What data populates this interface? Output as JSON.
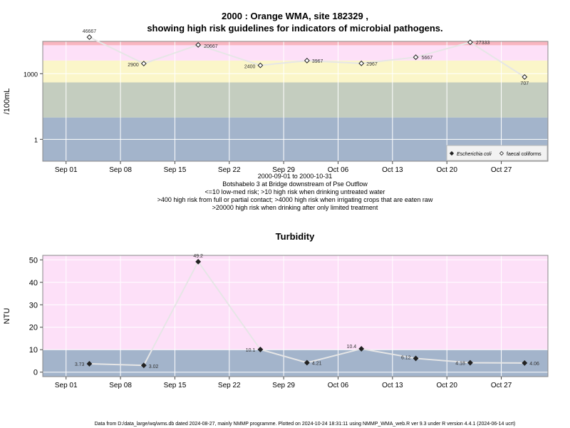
{
  "title_line1": "2000 : Orange WMA, site 182329 ,",
  "title_line2": "showing high risk guidelines for indicators of microbial pathogens.",
  "footer": "Data from D:/data_large/wq/wms.db dated 2024-08-27, mainly NMMP programme. Plotted on 2024-10-24 18:31:11 using NMMP_WMA_web.R ver 9.3 under R version 4.4.1 (2024-06-14 ucrt)",
  "colors": {
    "red_band": "#f9b5c0",
    "pink_band": "#fde0f8",
    "yellow_band": "#fbf6c9",
    "grey_band": "#c4cdbf",
    "blue_band": "#a3b4cb",
    "line": "#e6e6e6"
  },
  "chart_data": [
    {
      "type": "line",
      "ylabel": "/100mL",
      "y_scale": "log10",
      "ylim": [
        0.1,
        30000
      ],
      "y_ticks": [
        {
          "value": 1,
          "label": "1"
        },
        {
          "value": 1000,
          "label": "1000"
        }
      ],
      "x_ticks": [
        "Sep 01",
        "Sep 08",
        "Sep 15",
        "Sep 22",
        "Sep 29",
        "Oct 06",
        "Oct 13",
        "Oct 20",
        "Oct 27"
      ],
      "x_tick_dates": [
        "2000-09-01",
        "2000-09-08",
        "2000-09-15",
        "2000-09-22",
        "2000-09-29",
        "2000-10-06",
        "2000-10-13",
        "2000-10-20",
        "2000-10-27"
      ],
      "x_range": [
        "2000-08-29",
        "2000-11-02"
      ],
      "bands": [
        {
          "from": 0.1,
          "to": 10,
          "color": "blue"
        },
        {
          "from": 10,
          "to": 400,
          "color": "grey"
        },
        {
          "from": 400,
          "to": 4000,
          "color": "yellow"
        },
        {
          "from": 4000,
          "to": 20000,
          "color": "pink"
        },
        {
          "from": 20000,
          "to": 30000,
          "color": "red"
        }
      ],
      "series": [
        {
          "name": "faecal coliforms",
          "points": [
            {
              "x": "2000-09-04",
              "y": 46667,
              "label": "46667"
            },
            {
              "x": "2000-09-11",
              "y": 2900,
              "label": "2900"
            },
            {
              "x": "2000-09-18",
              "y": 20667,
              "label": "20667"
            },
            {
              "x": "2000-09-26",
              "y": 2400,
              "label": "2400"
            },
            {
              "x": "2000-10-02",
              "y": 3967,
              "label": "3967"
            },
            {
              "x": "2000-10-09",
              "y": 2967,
              "label": "2967"
            },
            {
              "x": "2000-10-16",
              "y": 5667,
              "label": "5667"
            },
            {
              "x": "2000-10-23",
              "y": 27333,
              "label": "27333"
            },
            {
              "x": "2000-10-30",
              "y": 707,
              "label": "707"
            }
          ]
        }
      ],
      "legend": {
        "position": "bottom-right",
        "items": [
          {
            "symbol": "filled-diamond",
            "label": "Escherichia coli"
          },
          {
            "symbol": "open-diamond",
            "label": "faecal coliforms"
          }
        ]
      },
      "captions": [
        "2000-09-01 to 2000-10-31",
        "Botshabelo 3 at Bridge downstream of Pse Outflow",
        "<=10 low-med risk; >10 high risk when drinking untreated water",
        ">400 high risk from full or partial contact; >4000 high risk when irrigating crops that are eaten raw",
        ">20000 high risk when drinking after only limited treatment"
      ]
    },
    {
      "type": "line",
      "title": "Turbidity",
      "ylabel": "NTU",
      "ylim": [
        -2,
        52
      ],
      "y_ticks": [
        {
          "value": 0,
          "label": "0"
        },
        {
          "value": 10,
          "label": "10"
        },
        {
          "value": 20,
          "label": "20"
        },
        {
          "value": 30,
          "label": "30"
        },
        {
          "value": 40,
          "label": "40"
        },
        {
          "value": 50,
          "label": "50"
        }
      ],
      "x_ticks": [
        "Sep 01",
        "Sep 08",
        "Sep 15",
        "Sep 22",
        "Sep 29",
        "Oct 06",
        "Oct 13",
        "Oct 20",
        "Oct 27"
      ],
      "x_tick_dates": [
        "2000-09-01",
        "2000-09-08",
        "2000-09-15",
        "2000-09-22",
        "2000-09-29",
        "2000-10-06",
        "2000-10-13",
        "2000-10-20",
        "2000-10-27"
      ],
      "x_range": [
        "2000-08-29",
        "2000-11-02"
      ],
      "bands": [
        {
          "from": -2,
          "to": 10,
          "color": "blue"
        },
        {
          "from": 10,
          "to": 52,
          "color": "pink"
        }
      ],
      "series": [
        {
          "points": [
            {
              "x": "2000-09-04",
              "y": 3.73,
              "label": "3.73"
            },
            {
              "x": "2000-09-11",
              "y": 3.02,
              "label": "3.02"
            },
            {
              "x": "2000-09-18",
              "y": 49.2,
              "label": "49.2"
            },
            {
              "x": "2000-09-26",
              "y": 10.1,
              "label": "10.1"
            },
            {
              "x": "2000-10-02",
              "y": 4.21,
              "label": "4.21"
            },
            {
              "x": "2000-10-09",
              "y": 10.4,
              "label": "10.4"
            },
            {
              "x": "2000-10-16",
              "y": 6.12,
              "label": "6.12"
            },
            {
              "x": "2000-10-23",
              "y": 4.18,
              "label": "4.18"
            },
            {
              "x": "2000-10-30",
              "y": 4.06,
              "label": "4.06"
            }
          ]
        }
      ]
    }
  ]
}
